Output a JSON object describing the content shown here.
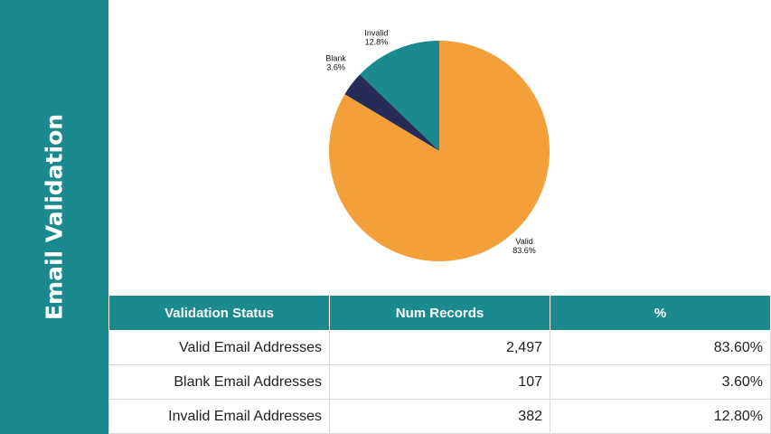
{
  "sidebar": {
    "title": "Email Validation"
  },
  "colors": {
    "teal": "#1b8a8f",
    "orange": "#f4a03a",
    "navy": "#262b57"
  },
  "chart_data": {
    "type": "pie",
    "slices": [
      {
        "label": "Invalid",
        "value": 12.8,
        "value_label": "12.8%",
        "color": "#1b8a8f"
      },
      {
        "label": "Blank",
        "value": 3.6,
        "value_label": "3.6%",
        "color": "#262b57"
      },
      {
        "label": "Valid",
        "value": 83.6,
        "value_label": "83.6%",
        "color": "#f4a03a"
      }
    ],
    "start": "12 o'clock",
    "direction": "counterclockwise"
  },
  "table": {
    "headers": [
      "Validation Status",
      "Num Records",
      "%"
    ],
    "rows": [
      [
        "Valid Email Addresses",
        "2,497",
        "83.60%"
      ],
      [
        "Blank Email Addresses",
        "107",
        "3.60%"
      ],
      [
        "Invalid Email Addresses",
        "382",
        "12.80%"
      ]
    ]
  }
}
